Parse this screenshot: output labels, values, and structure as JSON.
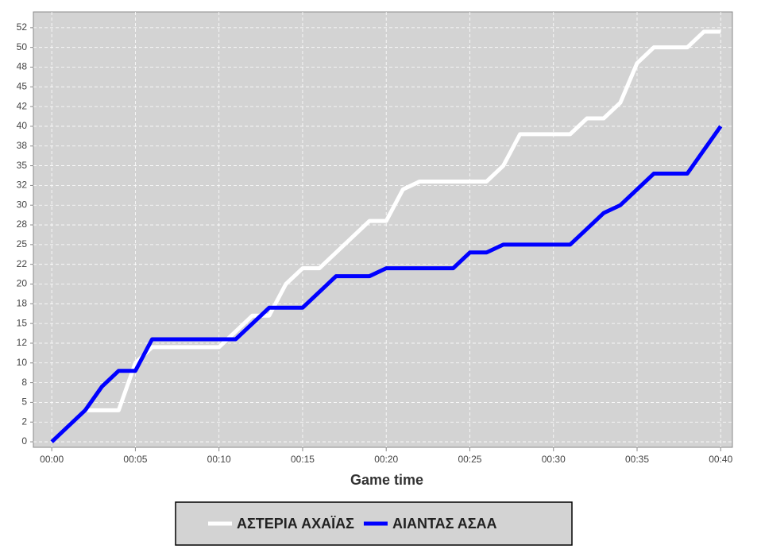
{
  "chart_data": {
    "type": "line",
    "x_label": "Game time",
    "x": [
      0,
      1,
      2,
      3,
      4,
      5,
      6,
      7,
      8,
      9,
      10,
      11,
      12,
      13,
      14,
      15,
      16,
      17,
      18,
      19,
      20,
      21,
      22,
      23,
      24,
      25,
      26,
      27,
      28,
      29,
      30,
      31,
      32,
      33,
      34,
      35,
      36,
      37,
      38,
      39,
      40
    ],
    "series": [
      {
        "name": "ΑΣΤΕΡΙΑ ΑΧΑΪΑΣ",
        "color": "#ffffff",
        "values": [
          0,
          2,
          4,
          4,
          4,
          10,
          12,
          12,
          12,
          12,
          12,
          14,
          16,
          16,
          20,
          22,
          22,
          24,
          26,
          28,
          28,
          32,
          33,
          33,
          33,
          33,
          33,
          35,
          39,
          39,
          39,
          39,
          41,
          41,
          43,
          48,
          50,
          50,
          50,
          52,
          52
        ]
      },
      {
        "name": "ΑΙΑΝΤΑΣ ΑΣΑΑ",
        "color": "#0000ff",
        "values": [
          0,
          2,
          4,
          7,
          9,
          9,
          13,
          13,
          13,
          13,
          13,
          13,
          15,
          17,
          17,
          17,
          19,
          21,
          21,
          21,
          22,
          22,
          22,
          22,
          22,
          24,
          24,
          25,
          25,
          25,
          25,
          25,
          27,
          29,
          30,
          32,
          34,
          34,
          34,
          37,
          40
        ]
      }
    ],
    "xlim": [
      -1.1,
      40.7
    ],
    "xticks": [
      {
        "value": 0,
        "label": "00:00"
      },
      {
        "value": 5,
        "label": "00:05"
      },
      {
        "value": 10,
        "label": "00:10"
      },
      {
        "value": 15,
        "label": "00:15"
      },
      {
        "value": 20,
        "label": "00:20"
      },
      {
        "value": 25,
        "label": "00:25"
      },
      {
        "value": 30,
        "label": "00:30"
      },
      {
        "value": 35,
        "label": "00:35"
      },
      {
        "value": 40,
        "label": "00:40"
      }
    ],
    "ylim": [
      -0.7,
      54.5
    ],
    "yticks": [
      0,
      {
        "value": 2.5,
        "label": "2"
      },
      5,
      {
        "value": 7.5,
        "label": "8"
      },
      10,
      {
        "value": 12.5,
        "label": "12"
      },
      15,
      {
        "value": 17.5,
        "label": "18"
      },
      20,
      {
        "value": 22.5,
        "label": "22"
      },
      25,
      {
        "value": 27.5,
        "label": "28"
      },
      30,
      {
        "value": 32.5,
        "label": "32"
      },
      35,
      {
        "value": 37.5,
        "label": "38"
      },
      40,
      {
        "value": 42.5,
        "label": "42"
      },
      45,
      {
        "value": 47.5,
        "label": "48"
      },
      50,
      {
        "value": 52.5,
        "label": "52"
      }
    ],
    "grid": true
  }
}
